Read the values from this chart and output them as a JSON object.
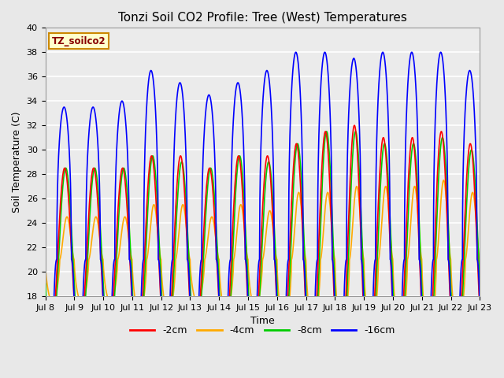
{
  "title": "Tonzi Soil CO2 Profile: Tree (West) Temperatures",
  "xlabel": "Time",
  "ylabel": "Soil Temperature (C)",
  "ylim": [
    18,
    40
  ],
  "xtick_labels": [
    "Jul 8",
    "Jul 9",
    "Jul 10",
    "Jul 11",
    "Jul 12",
    "Jul 13",
    "Jul 14",
    "Jul 15",
    "Jul 16",
    "Jul 17",
    "Jul 18",
    "Jul 19",
    "Jul 20",
    "Jul 21",
    "Jul 22",
    "Jul 23"
  ],
  "legend_label": "TZ_soilco2",
  "series_labels": [
    "-2cm",
    "-4cm",
    "-8cm",
    "-16cm"
  ],
  "series_colors": [
    "#ff0000",
    "#ffaa00",
    "#00cc00",
    "#0000ff"
  ],
  "background_color": "#e8e8e8",
  "plot_bg_color": "#ebebeb",
  "legend_box_color": "#ffffcc",
  "legend_box_edge": "#cc8800",
  "title_fontsize": 11,
  "label_fontsize": 9,
  "tick_fontsize": 8,
  "n_days": 15,
  "points_per_day": 144,
  "base_temp": 21.0,
  "line_width": 1.2
}
